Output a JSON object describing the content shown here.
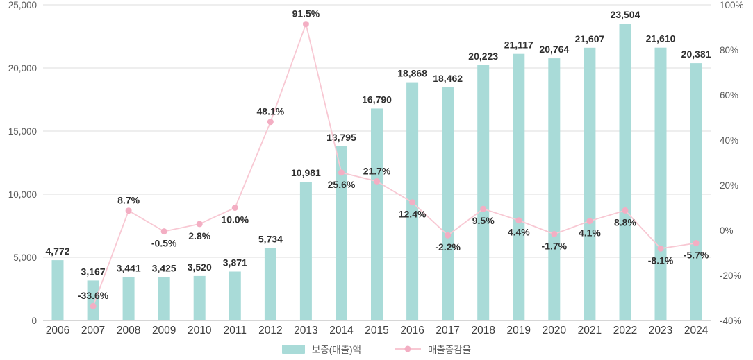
{
  "chart_data": {
    "type": "combo-bar-line",
    "categories": [
      "2006",
      "2007",
      "2008",
      "2009",
      "2010",
      "2011",
      "2012",
      "2013",
      "2014",
      "2015",
      "2016",
      "2017",
      "2018",
      "2019",
      "2020",
      "2021",
      "2022",
      "2023",
      "2024"
    ],
    "series": [
      {
        "name": "보증(매출)액",
        "type": "bar",
        "axis": "left",
        "color": "#a9dbd8",
        "values": [
          4772,
          3167,
          3441,
          3425,
          3520,
          3871,
          5734,
          10981,
          13795,
          16790,
          18868,
          18462,
          20223,
          21117,
          20764,
          21607,
          23504,
          21610,
          20381
        ],
        "labels": [
          "4,772",
          "3,167",
          "3,441",
          "3,425",
          "3,520",
          "3,871",
          "5,734",
          "10,981",
          "13,795",
          "16,790",
          "18,868",
          "18,462",
          "20,223",
          "21,117",
          "20,764",
          "21,607",
          "23,504",
          "21,610",
          "20,381"
        ]
      },
      {
        "name": "매출증감율",
        "type": "line",
        "axis": "right",
        "color": "#f8c8d3",
        "marker_color": "#f3aec3",
        "values": [
          null,
          -33.6,
          8.7,
          -0.5,
          2.8,
          10.0,
          48.1,
          91.5,
          25.6,
          21.7,
          12.4,
          -2.2,
          9.5,
          4.4,
          -1.7,
          4.1,
          8.8,
          -8.1,
          -5.7
        ],
        "labels": [
          null,
          "-33.6%",
          "8.7%",
          "-0.5%",
          "2.8%",
          "10.0%",
          "48.1%",
          "91.5%",
          "25.6%",
          "21.7%",
          "12.4%",
          "-2.2%",
          "9.5%",
          "4.4%",
          "-1.7%",
          "4.1%",
          "8.8%",
          "-8.1%",
          "-5.7%"
        ],
        "label_positions": [
          null,
          "above",
          "above",
          "below",
          "below",
          "below",
          "above",
          "above",
          "below",
          "above",
          "below",
          "below",
          "below",
          "below",
          "below",
          "below",
          "below",
          "below",
          "below"
        ]
      }
    ],
    "left_axis": {
      "min": 0,
      "max": 25000,
      "tick_values": [
        0,
        5000,
        10000,
        15000,
        20000,
        25000
      ],
      "tick_labels": [
        "0",
        "5,000",
        "10,000",
        "15,000",
        "20,000",
        "25,000"
      ]
    },
    "right_axis": {
      "min": -40,
      "max": 100,
      "tick_values": [
        -40,
        -20,
        0,
        20,
        40,
        60,
        80,
        100
      ],
      "tick_labels": [
        "-40%",
        "-20%",
        "0%",
        "20%",
        "40%",
        "60%",
        "80%",
        "100%"
      ]
    },
    "grid": true,
    "legend_position": "bottom",
    "colors": {
      "grid_line": "#dcdcdc",
      "baseline": "#c8c8c8",
      "data_label_text": "#2f2f2f",
      "axis_tick_text": "#5a5a5a",
      "category_text": "#3d3d3d"
    }
  }
}
